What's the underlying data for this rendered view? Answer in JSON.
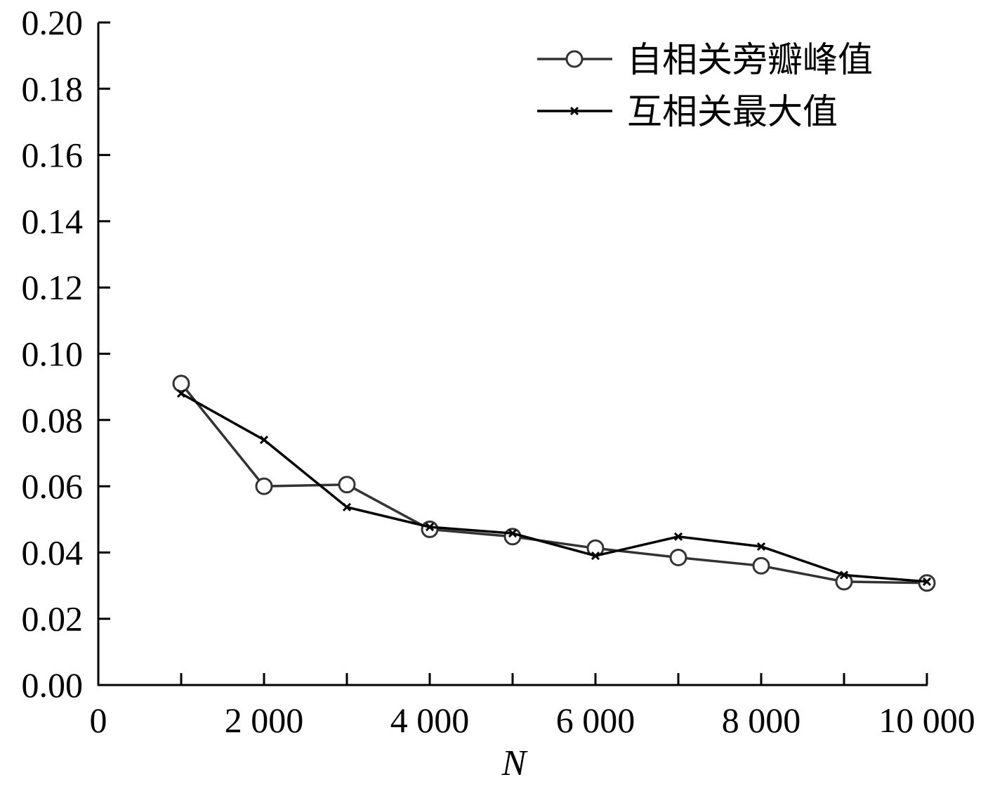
{
  "chart_data": {
    "type": "line",
    "xlabel": "N",
    "ylabel": "",
    "xlim": [
      0,
      10000
    ],
    "ylim": [
      0,
      0.2
    ],
    "x_ticks": [
      0,
      2000,
      4000,
      6000,
      8000,
      10000
    ],
    "x_tick_labels": [
      "0",
      "2 000",
      "4 000",
      "6 000",
      "8 000",
      "10 000"
    ],
    "y_ticks": [
      0,
      0.02,
      0.04,
      0.06,
      0.08,
      0.1,
      0.12,
      0.14,
      0.16,
      0.18,
      0.2
    ],
    "y_tick_labels": [
      "0.00",
      "0.02",
      "0.04",
      "0.06",
      "0.08",
      "0.10",
      "0.12",
      "0.14",
      "0.16",
      "0.18",
      "0.20"
    ],
    "grid": false,
    "legend_position": "top-right",
    "x": [
      1000,
      2000,
      3000,
      4000,
      5000,
      6000,
      7000,
      8000,
      9000,
      10000
    ],
    "series": [
      {
        "name": "自相关旁瓣峰值",
        "marker": "circle",
        "color": "#333333",
        "values": [
          0.091,
          0.06,
          0.0605,
          0.047,
          0.0448,
          0.0413,
          0.0385,
          0.036,
          0.0312,
          0.0308
        ]
      },
      {
        "name": "互相关最大值",
        "marker": "x",
        "color": "#000000",
        "values": [
          0.088,
          0.074,
          0.0537,
          0.0477,
          0.0458,
          0.039,
          0.0448,
          0.0418,
          0.0332,
          0.0312
        ]
      }
    ]
  }
}
